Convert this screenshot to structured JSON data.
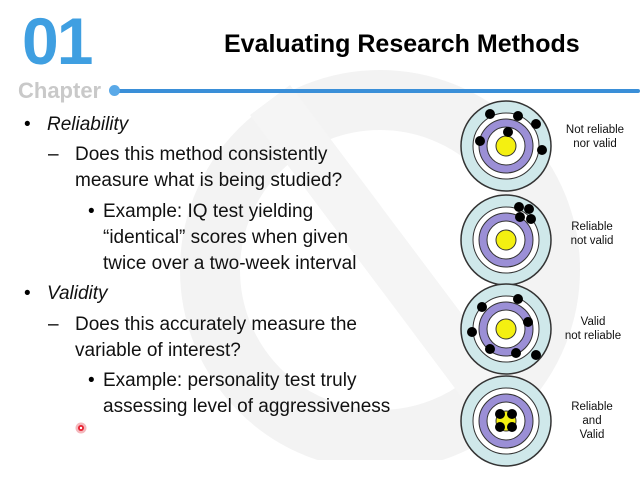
{
  "header": {
    "chapter_number": "01",
    "chapter_label": "Chapter",
    "title": "Evaluating Research Methods"
  },
  "bullets": {
    "reliability": {
      "heading": "Reliability",
      "question_line1": "Does this method consistently",
      "question_line2": "measure what is being studied?",
      "example_line1": "Example: IQ test yielding",
      "example_line2": "“identical” scores when given",
      "example_line3": "twice over a two-week interval"
    },
    "validity": {
      "heading": "Validity",
      "question_line1": "Does this accurately measure the",
      "question_line2": "variable of interest?",
      "example_line1": "Example: personality test truly",
      "example_line2": "assessing level of aggressiveness"
    }
  },
  "targets": [
    {
      "label_line1": "Not reliable",
      "label_line2": "nor valid",
      "label_line3": ""
    },
    {
      "label_line1": "Reliable",
      "label_line2": "not valid",
      "label_line3": ""
    },
    {
      "label_line1": "Valid",
      "label_line2": "not reliable",
      "label_line3": ""
    },
    {
      "label_line1": "Reliable",
      "label_line2": "and",
      "label_line3": "Valid"
    }
  ],
  "colors": {
    "chapter_blue": "#3f9fe1",
    "rule_blue": "#3a8fd8",
    "ring_outer": "#cfe8ea",
    "ring_purple": "#9b8fd6",
    "bullseye_yellow": "#f4f011"
  }
}
